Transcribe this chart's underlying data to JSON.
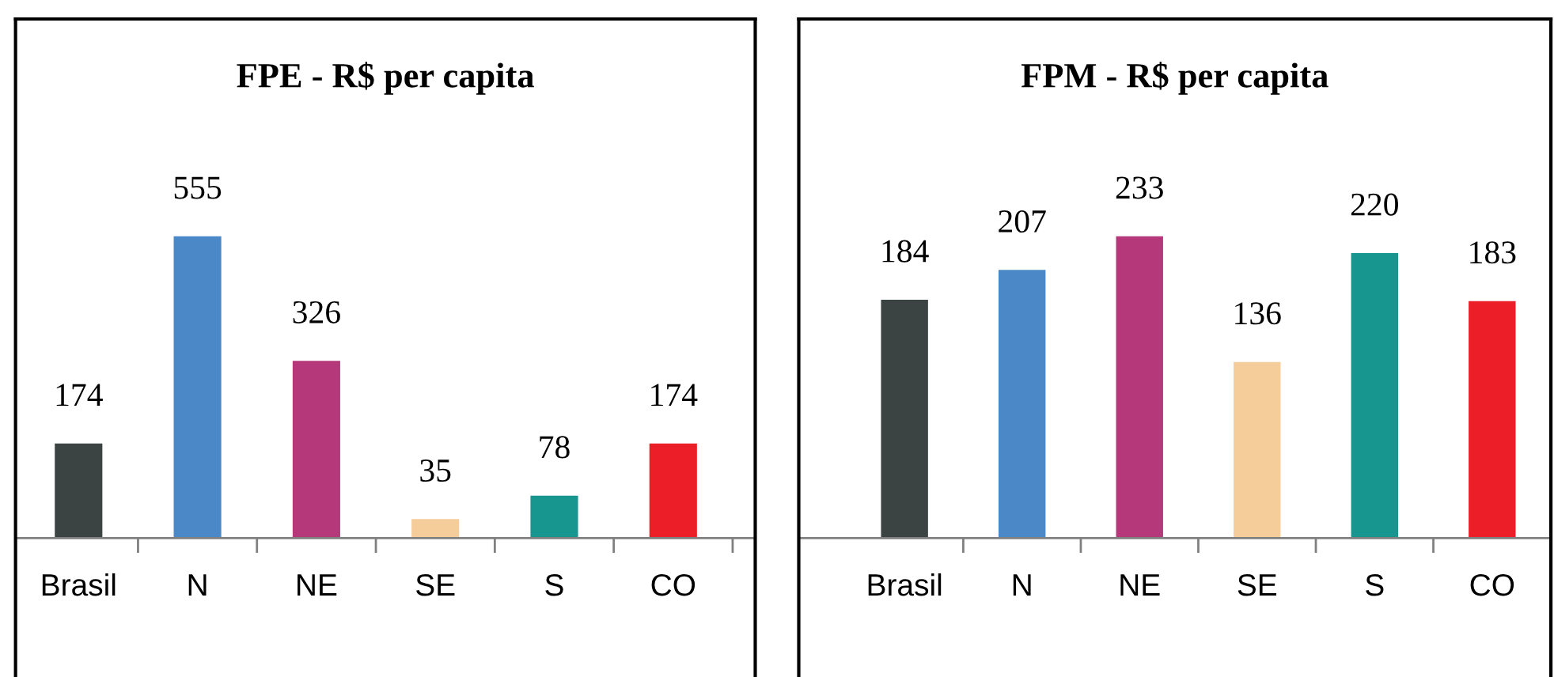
{
  "chart_data": [
    {
      "type": "bar",
      "title": "FPE - R$ per capita",
      "categories": [
        "Brasil",
        "N",
        "NE",
        "SE",
        "S",
        "CO"
      ],
      "values": [
        174,
        555,
        326,
        35,
        78,
        174
      ],
      "colors": [
        "#3c4443",
        "#4a88c8",
        "#b5397a",
        "#f5cd9a",
        "#16968e",
        "#ec1f28"
      ],
      "data_labels": true
    },
    {
      "type": "bar",
      "title": "FPM - R$ per capita",
      "categories": [
        "Brasil",
        "N",
        "NE",
        "SE",
        "S",
        "CO"
      ],
      "values": [
        184,
        207,
        233,
        136,
        220,
        183
      ],
      "colors": [
        "#3c4443",
        "#4a88c8",
        "#b5397a",
        "#f5cd9a",
        "#16968e",
        "#ec1f28"
      ],
      "data_labels": true
    }
  ]
}
